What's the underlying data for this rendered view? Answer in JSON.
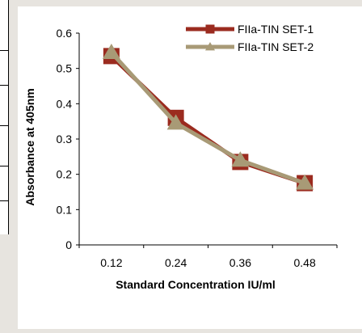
{
  "colors": {
    "set1": "#9b2b1f",
    "set2": "#a89a76",
    "axis": "#000000",
    "page_background": "#e7e4df"
  },
  "chart_data": {
    "type": "line",
    "categories": [
      "0.12",
      "0.24",
      "0.36",
      "0.48"
    ],
    "series": [
      {
        "name": "FIIa-TIN SET-1",
        "values": [
          0.535,
          0.36,
          0.235,
          0.175
        ],
        "marker": "square"
      },
      {
        "name": "FIIa-TIN SET-2",
        "values": [
          0.545,
          0.345,
          0.24,
          0.175
        ],
        "marker": "triangle"
      }
    ],
    "xlabel": "Standard Concentration IU/ml",
    "ylabel": "Absorbance at 405nm",
    "ylim": [
      0,
      0.6
    ],
    "yticks": [
      "0",
      "0.1",
      "0.2",
      "0.3",
      "0.4",
      "0.5",
      "0.6"
    ],
    "grid": false,
    "legend_position": "top-right"
  }
}
